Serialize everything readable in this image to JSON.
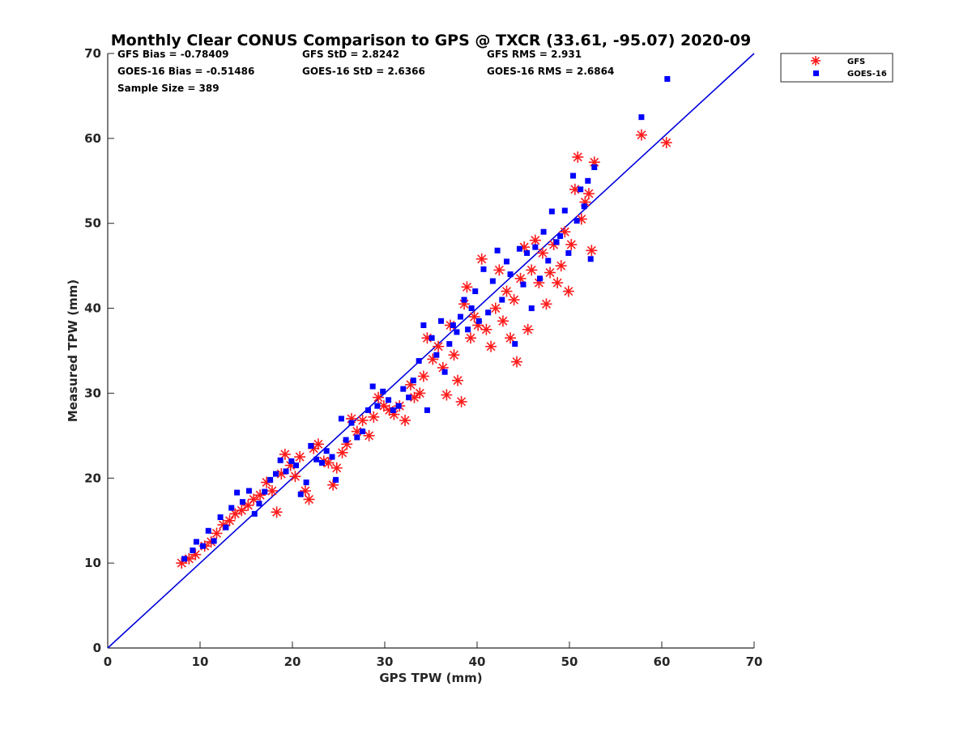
{
  "chart_data": {
    "type": "scatter",
    "title": "Monthly Clear CONUS Comparison to GPS @ TXCR (33.61, -95.07) 2020-09",
    "xlabel": "GPS TPW (mm)",
    "ylabel": "Measured TPW (mm)",
    "xlim": [
      0,
      70
    ],
    "ylim": [
      0,
      70
    ],
    "xticks": [
      "0",
      "10",
      "20",
      "30",
      "40",
      "50",
      "60",
      "70"
    ],
    "yticks": [
      "0",
      "10",
      "20",
      "30",
      "40",
      "50",
      "60",
      "70"
    ],
    "grid": false,
    "legend_position": "top-right, outside plot",
    "stats": {
      "gfs_bias": "GFS Bias = -0.78409",
      "gfs_std": "GFS StD = 2.8242",
      "gfs_rms": "GFS RMS = 2.931",
      "goes_bias": "GOES-16 Bias = -0.51486",
      "goes_std": "GOES-16 StD = 2.6366",
      "goes_rms": "GOES-16 RMS = 2.6864",
      "sample_size": "Sample Size = 389"
    },
    "reference_line": {
      "x": [
        0,
        70
      ],
      "y": [
        0,
        70
      ],
      "color": "#0000dd"
    },
    "series": [
      {
        "name": "GFS",
        "marker": "asterisk",
        "color": "#ff1a1a",
        "points": [
          [
            8.0,
            10.0
          ],
          [
            8.8,
            10.5
          ],
          [
            9.5,
            11.0
          ],
          [
            10.5,
            12.0
          ],
          [
            11.2,
            12.5
          ],
          [
            11.8,
            13.5
          ],
          [
            12.5,
            14.5
          ],
          [
            13.2,
            15.0
          ],
          [
            13.8,
            15.8
          ],
          [
            14.5,
            16.2
          ],
          [
            15.2,
            16.8
          ],
          [
            15.8,
            17.5
          ],
          [
            16.5,
            18.0
          ],
          [
            17.2,
            19.5
          ],
          [
            17.8,
            18.5
          ],
          [
            18.3,
            16.0
          ],
          [
            18.8,
            20.5
          ],
          [
            19.2,
            22.8
          ],
          [
            19.8,
            21.5
          ],
          [
            20.3,
            20.2
          ],
          [
            20.8,
            22.5
          ],
          [
            21.4,
            18.5
          ],
          [
            21.8,
            17.5
          ],
          [
            22.3,
            23.5
          ],
          [
            22.8,
            24.0
          ],
          [
            23.4,
            22.0
          ],
          [
            23.9,
            21.8
          ],
          [
            24.4,
            19.2
          ],
          [
            24.8,
            21.2
          ],
          [
            25.4,
            23.0
          ],
          [
            25.9,
            24.0
          ],
          [
            26.4,
            27.0
          ],
          [
            27.0,
            25.5
          ],
          [
            27.6,
            26.8
          ],
          [
            28.3,
            25.0
          ],
          [
            28.8,
            27.2
          ],
          [
            29.3,
            29.5
          ],
          [
            29.9,
            28.5
          ],
          [
            30.5,
            28.0
          ],
          [
            31.0,
            27.5
          ],
          [
            31.6,
            28.5
          ],
          [
            32.2,
            26.8
          ],
          [
            32.8,
            31.0
          ],
          [
            33.2,
            29.5
          ],
          [
            33.8,
            30.0
          ],
          [
            34.2,
            32.0
          ],
          [
            34.6,
            36.5
          ],
          [
            35.2,
            34.0
          ],
          [
            35.8,
            35.5
          ],
          [
            36.3,
            33.0
          ],
          [
            36.7,
            29.8
          ],
          [
            37.1,
            38.0
          ],
          [
            37.5,
            34.5
          ],
          [
            37.9,
            31.5
          ],
          [
            38.3,
            29.0
          ],
          [
            38.6,
            40.5
          ],
          [
            38.9,
            42.5
          ],
          [
            39.3,
            36.5
          ],
          [
            39.7,
            39.0
          ],
          [
            40.1,
            38.0
          ],
          [
            40.5,
            45.8
          ],
          [
            41.0,
            37.5
          ],
          [
            41.5,
            35.5
          ],
          [
            42.0,
            40.0
          ],
          [
            42.4,
            44.5
          ],
          [
            42.8,
            38.5
          ],
          [
            43.2,
            42.0
          ],
          [
            43.6,
            36.5
          ],
          [
            44.0,
            41.0
          ],
          [
            44.3,
            33.7
          ],
          [
            44.7,
            43.5
          ],
          [
            45.1,
            47.2
          ],
          [
            45.5,
            37.5
          ],
          [
            45.9,
            44.5
          ],
          [
            46.3,
            48.0
          ],
          [
            46.7,
            43.0
          ],
          [
            47.1,
            46.5
          ],
          [
            47.5,
            40.5
          ],
          [
            47.9,
            44.2
          ],
          [
            48.3,
            47.5
          ],
          [
            48.7,
            43.0
          ],
          [
            49.1,
            45.0
          ],
          [
            49.5,
            49.0
          ],
          [
            49.9,
            42.0
          ],
          [
            50.2,
            47.5
          ],
          [
            50.6,
            54.0
          ],
          [
            50.9,
            57.8
          ],
          [
            51.3,
            50.5
          ],
          [
            51.7,
            52.5
          ],
          [
            52.1,
            53.5
          ],
          [
            52.4,
            46.8
          ],
          [
            52.7,
            57.2
          ],
          [
            57.8,
            60.4
          ],
          [
            60.5,
            59.5
          ]
        ]
      },
      {
        "name": "GOES-16",
        "marker": "square",
        "color": "#0000ff",
        "points": [
          [
            8.3,
            10.5
          ],
          [
            9.2,
            11.5
          ],
          [
            9.6,
            12.5
          ],
          [
            10.3,
            12.0
          ],
          [
            10.9,
            13.8
          ],
          [
            11.5,
            12.6
          ],
          [
            12.2,
            15.4
          ],
          [
            12.8,
            14.2
          ],
          [
            13.4,
            16.5
          ],
          [
            14.0,
            18.3
          ],
          [
            14.6,
            17.2
          ],
          [
            15.3,
            18.5
          ],
          [
            15.9,
            15.8
          ],
          [
            16.4,
            17.0
          ],
          [
            17.0,
            18.4
          ],
          [
            17.6,
            19.8
          ],
          [
            18.2,
            20.5
          ],
          [
            18.7,
            22.1
          ],
          [
            19.3,
            20.8
          ],
          [
            19.9,
            22.0
          ],
          [
            20.4,
            21.5
          ],
          [
            20.9,
            18.1
          ],
          [
            21.5,
            19.5
          ],
          [
            22.0,
            23.8
          ],
          [
            22.6,
            22.2
          ],
          [
            23.2,
            21.8
          ],
          [
            23.7,
            23.2
          ],
          [
            24.3,
            22.5
          ],
          [
            24.7,
            19.8
          ],
          [
            25.3,
            27.0
          ],
          [
            25.8,
            24.5
          ],
          [
            26.4,
            26.5
          ],
          [
            27.0,
            24.8
          ],
          [
            27.6,
            25.5
          ],
          [
            28.2,
            28.0
          ],
          [
            28.7,
            30.8
          ],
          [
            29.2,
            28.5
          ],
          [
            29.8,
            30.2
          ],
          [
            30.4,
            29.2
          ],
          [
            30.9,
            28.0
          ],
          [
            31.5,
            28.5
          ],
          [
            32.0,
            30.5
          ],
          [
            32.6,
            29.5
          ],
          [
            33.1,
            31.5
          ],
          [
            33.7,
            33.8
          ],
          [
            34.2,
            38.0
          ],
          [
            34.6,
            28.0
          ],
          [
            35.1,
            36.5
          ],
          [
            35.6,
            34.5
          ],
          [
            36.1,
            38.5
          ],
          [
            36.5,
            32.5
          ],
          [
            37.0,
            35.8
          ],
          [
            37.4,
            38.0
          ],
          [
            37.8,
            37.2
          ],
          [
            38.2,
            39.0
          ],
          [
            38.6,
            41.0
          ],
          [
            39.0,
            37.5
          ],
          [
            39.4,
            40.0
          ],
          [
            39.8,
            42.0
          ],
          [
            40.2,
            38.5
          ],
          [
            40.7,
            44.6
          ],
          [
            41.2,
            39.5
          ],
          [
            41.7,
            43.2
          ],
          [
            42.2,
            46.8
          ],
          [
            42.7,
            41.0
          ],
          [
            43.2,
            45.5
          ],
          [
            43.6,
            44.0
          ],
          [
            44.1,
            35.8
          ],
          [
            44.6,
            47.0
          ],
          [
            45.0,
            42.8
          ],
          [
            45.4,
            46.5
          ],
          [
            45.9,
            40.0
          ],
          [
            46.3,
            47.2
          ],
          [
            46.8,
            43.5
          ],
          [
            47.2,
            49.0
          ],
          [
            47.7,
            45.6
          ],
          [
            48.1,
            51.4
          ],
          [
            48.6,
            47.8
          ],
          [
            49.0,
            48.5
          ],
          [
            49.5,
            51.5
          ],
          [
            49.9,
            46.5
          ],
          [
            50.4,
            55.6
          ],
          [
            50.8,
            50.3
          ],
          [
            51.2,
            54.0
          ],
          [
            51.6,
            52.0
          ],
          [
            52.0,
            55.0
          ],
          [
            52.3,
            45.8
          ],
          [
            52.7,
            56.6
          ],
          [
            57.8,
            62.5
          ],
          [
            60.6,
            67.0
          ]
        ]
      }
    ]
  }
}
